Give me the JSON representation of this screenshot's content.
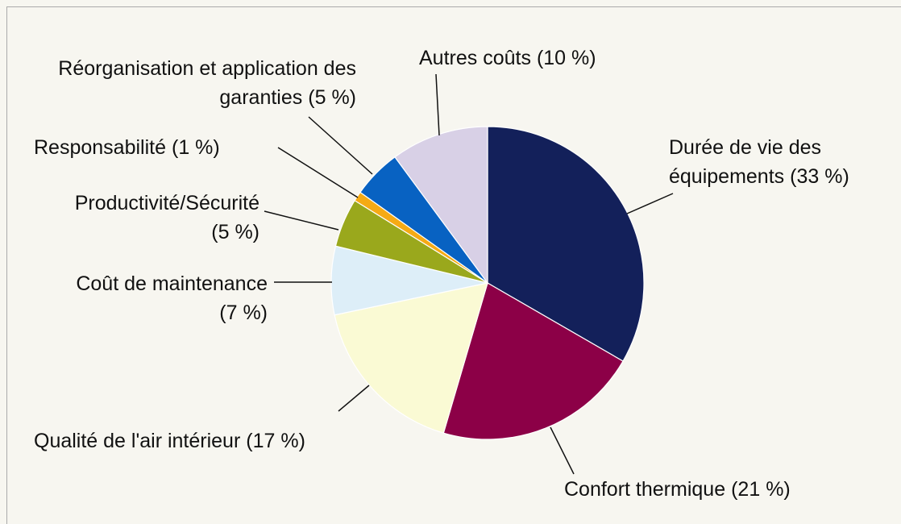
{
  "chart_data": {
    "type": "pie",
    "categories": [
      "Durée de vie des équipements",
      "Confort thermique",
      "Qualité de l'air intérieur",
      "Coût de maintenance",
      "Productivité/Sécurité",
      "Responsabilité",
      "Réorganisation et application des garanties",
      "Autres coûts"
    ],
    "values": [
      33,
      21,
      17,
      7,
      5,
      1,
      5,
      10
    ],
    "value_labels": [
      "(33 %)",
      "(21 %)",
      "(17 %)",
      "(7 %)",
      "(5 %)",
      "(1 %)",
      "(5 %)",
      "(10 %)"
    ],
    "colors": [
      "#13205a",
      "#8c0047",
      "#fafad4",
      "#ddeef8",
      "#9aa81c",
      "#f5aa14",
      "#0862c2",
      "#d8d0e6"
    ]
  }
}
